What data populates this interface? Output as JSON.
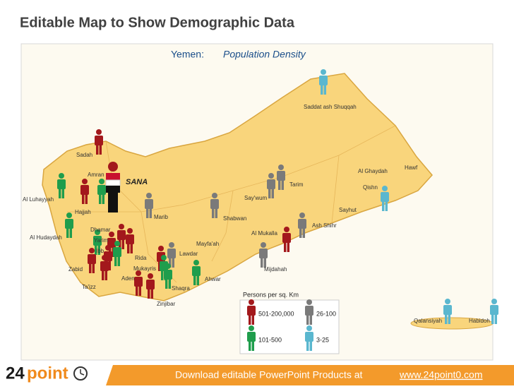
{
  "header": {
    "title": "Editable Map to Show Demographic Data"
  },
  "map": {
    "title_prefix": "Yemen:",
    "title_main": "Population Density",
    "capital": "SANA",
    "cities": [
      "Saddat ash Shuqqah",
      "Sadah",
      "Amran",
      "Al Luhayyah",
      "Hajjah",
      "Marib",
      "Shabwan",
      "Say'wum",
      "Tarim",
      "Al Ghaydah",
      "Hawf",
      "Qishn",
      "Sayhut",
      "Ash Shihr",
      "Al Mukalla",
      "Dhamar",
      "Al Hudaydah",
      "Yarim",
      "Mayfa'ah",
      "Ibb",
      "Rida",
      "Lawdar",
      "Zabid",
      "Mukayris",
      "Mijdahah",
      "Aden",
      "Ahwar",
      "Ta'izz",
      "Shaqra",
      "Zinjibar",
      "Qalansiyah",
      "Habidoh"
    ],
    "legend": {
      "title": "Persons per sq. Km",
      "items": [
        {
          "label": "501-200,000",
          "color": "#a3181c"
        },
        {
          "label": "26-100",
          "color": "#7a7a7a"
        },
        {
          "label": "101-500",
          "color": "#1f9d4c"
        },
        {
          "label": "3-25",
          "color": "#5ab7cf"
        }
      ]
    }
  },
  "footer": {
    "logo_number": "24",
    "logo_word": "point",
    "text": "Download editable PowerPoint Products at",
    "link": "www.24point0.com"
  }
}
